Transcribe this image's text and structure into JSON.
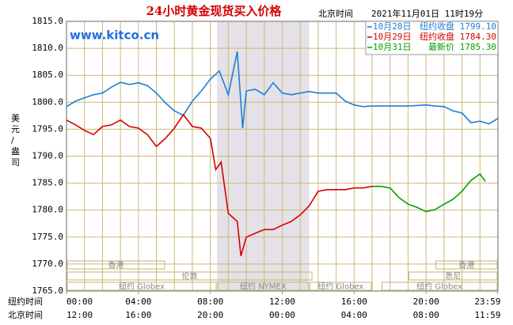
{
  "chart_data": {
    "type": "line",
    "title": "24小时黄金现货买入价格",
    "timezone_label": "北京时间",
    "timestamp": "2021年11月01日 11时19分",
    "watermark": "www.kitco.cn",
    "y_label": "美元/盎司",
    "x_row_labels": [
      "纽约时间",
      "北京时间"
    ],
    "xlim": [
      0,
      24
    ],
    "xticks": [
      {
        "value": 0,
        "label": "00:00"
      },
      {
        "value": 4,
        "label": "04:00"
      },
      {
        "value": 8,
        "label": "08:00"
      },
      {
        "value": 12,
        "label": "12:00"
      },
      {
        "value": 16,
        "label": "16:00"
      },
      {
        "value": 20,
        "label": "20:00"
      },
      {
        "value": 23.98,
        "label": "23:59"
      }
    ],
    "x2ticks": [
      {
        "value": 0,
        "label": "12:00"
      },
      {
        "value": 4,
        "label": "16:00"
      },
      {
        "value": 8,
        "label": "20:00"
      },
      {
        "value": 12,
        "label": "00:00"
      },
      {
        "value": 16,
        "label": "04:00"
      },
      {
        "value": 20,
        "label": "08:00"
      },
      {
        "value": 23.98,
        "label": "11:59"
      }
    ],
    "ylim": [
      1765,
      1815
    ],
    "yticks": [
      {
        "value": 1765,
        "label": "1765.0"
      },
      {
        "value": 1770,
        "label": "1770.0"
      },
      {
        "value": 1775,
        "label": "1775.0"
      },
      {
        "value": 1780,
        "label": "1780.0"
      },
      {
        "value": 1785,
        "label": "1785.0"
      },
      {
        "value": 1790,
        "label": "1790.0"
      },
      {
        "value": 1795,
        "label": "1795.0"
      },
      {
        "value": 1800,
        "label": "1800.0"
      },
      {
        "value": 1805,
        "label": "1805.0"
      },
      {
        "value": 1810,
        "label": "1810.0"
      },
      {
        "value": 1815,
        "label": "1815.0"
      }
    ],
    "grid": true,
    "sessions": [
      {
        "label": "香港",
        "row": 0,
        "range": [
          0,
          5.5
        ]
      },
      {
        "label": "香港",
        "row": 0,
        "range": [
          20.5,
          24
        ]
      },
      {
        "label": "伦敦",
        "row": 1,
        "range": [
          0,
          13.7
        ]
      },
      {
        "label": "悉尼",
        "row": 1,
        "range": [
          19,
          24
        ]
      },
      {
        "label": "纽约 Globex",
        "row": 2,
        "range": [
          0,
          8.37
        ]
      },
      {
        "label": "纽约 NYMEX",
        "row": 2,
        "range": [
          8.37,
          13.5
        ],
        "shade": true
      },
      {
        "label": "纽约 Globex",
        "row": 2,
        "range": [
          13.5,
          17
        ]
      },
      {
        "label": "纽约 Globex",
        "row": 2,
        "range": [
          17.5,
          24
        ]
      }
    ],
    "series": [
      {
        "name": "10月28日",
        "note": "纽约收盘",
        "close": "1799.10",
        "color": "#1f7fd6",
        "x": [
          0,
          0.5,
          1,
          1.5,
          2,
          2.5,
          3,
          3.5,
          4,
          4.5,
          5,
          5.5,
          6,
          6.5,
          7,
          7.5,
          8,
          8.5,
          9,
          9.5,
          9.8,
          10,
          10.5,
          11,
          11.5,
          12,
          12.5,
          13,
          13.5,
          14,
          14.5,
          15,
          15.5,
          16,
          16.5,
          17,
          18,
          19,
          20,
          20.5,
          21,
          21.5,
          22,
          22.5,
          23,
          23.5,
          24
        ],
        "values": [
          1799.2,
          1800.2,
          1800.8,
          1801.4,
          1801.7,
          1802.8,
          1803.7,
          1803.3,
          1803.6,
          1803.1,
          1801.7,
          1799.9,
          1798.4,
          1797.6,
          1800.2,
          1802.1,
          1804.3,
          1805.8,
          1801.4,
          1809.4,
          1795.2,
          1802.1,
          1802.4,
          1801.4,
          1803.6,
          1801.7,
          1801.4,
          1801.7,
          1802,
          1801.7,
          1801.7,
          1801.7,
          1800.2,
          1799.5,
          1799.2,
          1799.3,
          1799.3,
          1799.3,
          1799.5,
          1799.3,
          1799.2,
          1798.4,
          1798,
          1796.2,
          1796.5,
          1796,
          1797
        ]
      },
      {
        "name": "10月29日",
        "note": "纽约收盘",
        "close": "1784.30",
        "color": "#d40000",
        "x": [
          0,
          0.5,
          1,
          1.5,
          2,
          2.5,
          3,
          3.5,
          4,
          4.5,
          5,
          5.5,
          6,
          6.5,
          7,
          7.5,
          8,
          8.3,
          8.6,
          9,
          9.5,
          9.7,
          10,
          10.5,
          11,
          11.5,
          12,
          12.5,
          13,
          13.5,
          14,
          14.5,
          15,
          15.5,
          16,
          16.5,
          17
        ],
        "values": [
          1796.7,
          1795.8,
          1794.8,
          1794,
          1795.5,
          1795.8,
          1796.7,
          1795.5,
          1795.2,
          1794,
          1791.8,
          1793.3,
          1795.2,
          1797.7,
          1795.5,
          1795.2,
          1793.3,
          1787.5,
          1788.9,
          1779.4,
          1777.9,
          1771.5,
          1775,
          1775.7,
          1776.4,
          1776.4,
          1777.2,
          1777.9,
          1779.1,
          1780.8,
          1783.5,
          1783.8,
          1783.8,
          1783.8,
          1784.1,
          1784.1,
          1784.4
        ]
      },
      {
        "name": "10月31日",
        "note": "最新价",
        "close": "1785.30",
        "color": "#00a000",
        "x": [
          17,
          17.5,
          18,
          18.5,
          19,
          19.5,
          20,
          20.5,
          21,
          21.5,
          22,
          22.5,
          23,
          23.3
        ],
        "values": [
          1784.4,
          1784.4,
          1784.1,
          1782.3,
          1781.1,
          1780.5,
          1779.7,
          1780.1,
          1781.1,
          1782,
          1783.5,
          1785.5,
          1786.7,
          1785.3
        ]
      }
    ]
  }
}
